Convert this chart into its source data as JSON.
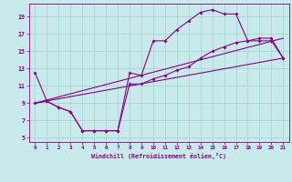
{
  "xlabel": "Windchill (Refroidissement éolien,°C)",
  "bg_color": "#c8eaea",
  "grid_color": "#aad4d4",
  "line_color": "#880088",
  "xlim": [
    -0.5,
    21.5
  ],
  "ylim": [
    4.5,
    20.5
  ],
  "yticks": [
    5,
    7,
    9,
    11,
    13,
    15,
    17,
    19
  ],
  "xticks": [
    0,
    1,
    2,
    3,
    4,
    5,
    6,
    7,
    8,
    9,
    10,
    11,
    12,
    13,
    14,
    15,
    16,
    17,
    18,
    19,
    20,
    21
  ],
  "series1_x": [
    0,
    1,
    2,
    3,
    4,
    5,
    6,
    7,
    8,
    9,
    10,
    11,
    12,
    13,
    14,
    15,
    16,
    17,
    18,
    19,
    20,
    21
  ],
  "series1_y": [
    12.5,
    9.2,
    8.5,
    8.0,
    5.8,
    5.8,
    5.8,
    5.8,
    12.5,
    12.2,
    16.2,
    16.2,
    17.5,
    18.5,
    19.5,
    19.8,
    19.3,
    19.3,
    16.2,
    16.2,
    16.2,
    14.2
  ],
  "series2_x": [
    0,
    1,
    2,
    3,
    4,
    5,
    6,
    7,
    8,
    9,
    10,
    11,
    12,
    13,
    14,
    15,
    16,
    17,
    18,
    19,
    20,
    21
  ],
  "series2_y": [
    9.0,
    9.2,
    8.5,
    8.0,
    5.8,
    5.8,
    5.8,
    5.8,
    11.2,
    11.2,
    11.8,
    12.2,
    12.8,
    13.2,
    14.2,
    15.0,
    15.5,
    16.0,
    16.2,
    16.5,
    16.5,
    14.2
  ],
  "series3_x": [
    0,
    21
  ],
  "series3_y": [
    9.0,
    14.2
  ],
  "series4_x": [
    0,
    21
  ],
  "series4_y": [
    9.0,
    16.5
  ]
}
